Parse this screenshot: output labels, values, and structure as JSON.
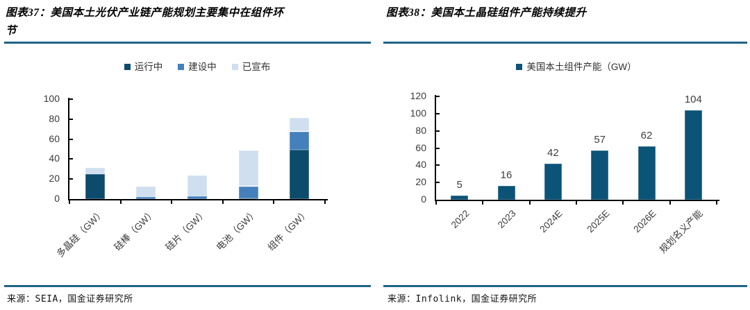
{
  "figures": [
    {
      "caption": "图表37：美国本土光伏产业链产能规划主要集中在组件环节",
      "source": "来源：SEIA，国金证券研究所"
    },
    {
      "caption": "图表38：美国本土晶硅组件产能持续提升",
      "source": "来源：Infolink，国金证券研究所"
    }
  ],
  "colors": {
    "divider_rule": "#1f6287",
    "axis": "#000000",
    "tick_text": "#3a3a3a",
    "data_label_text": "#404040",
    "series_operating": "#0d4b6d",
    "series_under_construction": "#4380bc",
    "series_announced": "#cfdfef",
    "series_module_capacity": "#0b5377"
  },
  "chart_data": [
    {
      "type": "bar",
      "stacked": true,
      "title": "",
      "categories": [
        "多晶硅（GW）",
        "硅棒（GW）",
        "硅片（GW）",
        "电池（GW）",
        "组件（GW）"
      ],
      "series": [
        {
          "name": "运行中",
          "color": "#0d4b6d",
          "values": [
            25,
            0,
            0,
            1,
            49
          ]
        },
        {
          "name": "建设中",
          "color": "#4380bc",
          "values": [
            0,
            2,
            3,
            12,
            19
          ]
        },
        {
          "name": "已宣布",
          "color": "#cfdfef",
          "values": [
            7,
            11,
            21,
            36,
            14
          ]
        }
      ],
      "xlabel": "",
      "ylabel": "",
      "ylim": [
        0,
        100
      ],
      "ytick_step": 20,
      "grid": false,
      "legend_position": "top",
      "data_labels": false
    },
    {
      "type": "bar",
      "stacked": false,
      "title": "",
      "categories": [
        "2022",
        "2023",
        "2024E",
        "2025E",
        "2026E",
        "规划名义产能"
      ],
      "series": [
        {
          "name": "美国本土组件产能（GW）",
          "color": "#0b5377",
          "values": [
            5,
            16,
            42,
            57,
            62,
            104
          ]
        }
      ],
      "xlabel": "",
      "ylabel": "",
      "ylim": [
        0,
        120
      ],
      "ytick_step": 20,
      "grid": false,
      "legend_position": "top",
      "data_labels": true
    }
  ]
}
